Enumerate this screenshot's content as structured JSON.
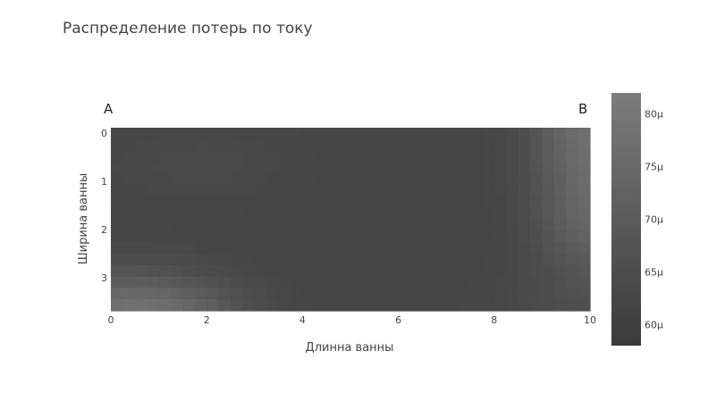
{
  "chart_data": {
    "type": "heatmap",
    "title": "Распределение потерь по току",
    "xlabel": "Длинна ванны",
    "ylabel": "Ширина ванны",
    "xlim": [
      0,
      10
    ],
    "ylim": [
      0,
      3.8
    ],
    "x_ticks": [
      "0",
      "2",
      "4",
      "6",
      "8",
      "10"
    ],
    "y_ticks": [
      "0",
      "1",
      "2",
      "3"
    ],
    "corner_labels": {
      "left": "A",
      "right": "B"
    },
    "colorscale": {
      "low": "#3a3a3a",
      "high": "#7c7c7c"
    },
    "colorbar": {
      "min": 5.8e-05,
      "max": 8.2e-05,
      "ticks": [
        "60μ",
        "65μ",
        "70μ",
        "75μ",
        "80μ"
      ],
      "tick_values": [
        6e-05,
        6.5e-05,
        7e-05,
        7.5e-05,
        8e-05
      ]
    },
    "grid": {
      "cols": 40,
      "rows": 16
    },
    "z_description": "Approximate field: higher values near the top-right corner and bottom-left corner, low in the middle (~63μ)"
  }
}
